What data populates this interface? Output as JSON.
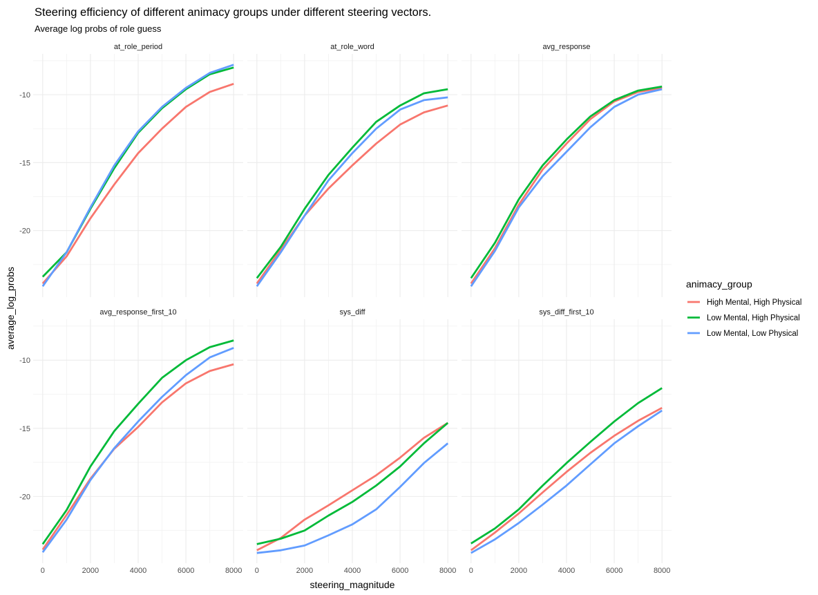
{
  "chart_data": {
    "type": "line",
    "title": "Steering efficiency of different animacy groups under different steering vectors.",
    "subtitle": "Average log probs of role guess",
    "xlabel": "steering_magnitude",
    "ylabel": "average_log_probs",
    "xlim": [
      -400,
      8400
    ],
    "ylim": [
      -24.9,
      -7.0
    ],
    "x_ticks": [
      0,
      2000,
      4000,
      6000,
      8000
    ],
    "y_ticks": [
      -20,
      -15,
      -10
    ],
    "grid": true,
    "legend": {
      "title": "animacy_group",
      "placement": "right",
      "entries": [
        "High Mental, High Physical",
        "Low Mental, High Physical",
        "Low Mental, Low Physical"
      ]
    },
    "colors": {
      "High Mental, High Physical": "#F8766D",
      "Low Mental, High Physical": "#00BA38",
      "Low Mental, Low Physical": "#619CFF"
    },
    "x": [
      0,
      1000,
      2000,
      3000,
      4000,
      5000,
      6000,
      7000,
      8000
    ],
    "facets": [
      {
        "name": "at_role_period",
        "series": [
          {
            "name": "High Mental, High Physical",
            "values": [
              -23.9,
              -21.9,
              -19.1,
              -16.6,
              -14.3,
              -12.5,
              -10.9,
              -9.8,
              -9.2
            ]
          },
          {
            "name": "Low Mental, High Physical",
            "values": [
              -23.4,
              -21.6,
              -18.4,
              -15.4,
              -12.8,
              -11.0,
              -9.6,
              -8.5,
              -8.0
            ]
          },
          {
            "name": "Low Mental, Low Physical",
            "values": [
              -24.1,
              -21.6,
              -18.3,
              -15.2,
              -12.7,
              -10.9,
              -9.5,
              -8.4,
              -7.8
            ]
          }
        ]
      },
      {
        "name": "at_role_word",
        "series": [
          {
            "name": "High Mental, High Physical",
            "values": [
              -23.9,
              -21.4,
              -18.9,
              -16.9,
              -15.2,
              -13.6,
              -12.2,
              -11.3,
              -10.8
            ]
          },
          {
            "name": "Low Mental, High Physical",
            "values": [
              -23.5,
              -21.2,
              -18.4,
              -15.9,
              -13.9,
              -12.0,
              -10.8,
              -9.9,
              -9.6
            ]
          },
          {
            "name": "Low Mental, Low Physical",
            "values": [
              -24.1,
              -21.6,
              -18.9,
              -16.3,
              -14.3,
              -12.5,
              -11.1,
              -10.4,
              -10.2
            ]
          }
        ]
      },
      {
        "name": "avg_response",
        "series": [
          {
            "name": "High Mental, High Physical",
            "values": [
              -23.9,
              -21.3,
              -18.1,
              -15.5,
              -13.6,
              -11.8,
              -10.5,
              -9.8,
              -9.5
            ]
          },
          {
            "name": "Low Mental, High Physical",
            "values": [
              -23.5,
              -20.9,
              -17.7,
              -15.2,
              -13.3,
              -11.6,
              -10.4,
              -9.7,
              -9.4
            ]
          },
          {
            "name": "Low Mental, Low Physical",
            "values": [
              -24.1,
              -21.5,
              -18.3,
              -16.0,
              -14.2,
              -12.4,
              -10.9,
              -10.0,
              -9.6
            ]
          }
        ]
      },
      {
        "name": "avg_response_first_10",
        "series": [
          {
            "name": "High Mental, High Physical",
            "values": [
              -23.9,
              -21.35,
              -18.7,
              -16.5,
              -14.9,
              -13.1,
              -11.7,
              -10.8,
              -10.3
            ]
          },
          {
            "name": "Low Mental, High Physical",
            "values": [
              -23.5,
              -21.0,
              -17.8,
              -15.2,
              -13.2,
              -11.3,
              -10.0,
              -9.05,
              -8.55
            ]
          },
          {
            "name": "Low Mental, Low Physical",
            "values": [
              -24.1,
              -21.7,
              -18.8,
              -16.45,
              -14.5,
              -12.7,
              -11.1,
              -9.8,
              -9.1
            ]
          }
        ]
      },
      {
        "name": "sys_diff",
        "series": [
          {
            "name": "High Mental, High Physical",
            "values": [
              -23.95,
              -23.05,
              -21.7,
              -20.65,
              -19.55,
              -18.45,
              -17.15,
              -15.7,
              -14.6
            ]
          },
          {
            "name": "Low Mental, High Physical",
            "values": [
              -23.5,
              -23.1,
              -22.5,
              -21.4,
              -20.4,
              -19.2,
              -17.8,
              -16.1,
              -14.6
            ]
          },
          {
            "name": "Low Mental, Low Physical",
            "values": [
              -24.15,
              -23.95,
              -23.6,
              -22.85,
              -22.05,
              -20.95,
              -19.3,
              -17.55,
              -16.1
            ]
          }
        ]
      },
      {
        "name": "sys_diff_first_10",
        "series": [
          {
            "name": "High Mental, High Physical",
            "values": [
              -23.95,
              -22.65,
              -21.25,
              -19.7,
              -18.2,
              -16.8,
              -15.55,
              -14.45,
              -13.5
            ]
          },
          {
            "name": "Low Mental, High Physical",
            "values": [
              -23.45,
              -22.35,
              -20.95,
              -19.2,
              -17.55,
              -16.0,
              -14.5,
              -13.15,
              -12.05
            ]
          },
          {
            "name": "Low Mental, Low Physical",
            "values": [
              -24.15,
              -23.15,
              -21.95,
              -20.6,
              -19.2,
              -17.65,
              -16.1,
              -14.85,
              -13.7
            ]
          }
        ]
      }
    ]
  }
}
